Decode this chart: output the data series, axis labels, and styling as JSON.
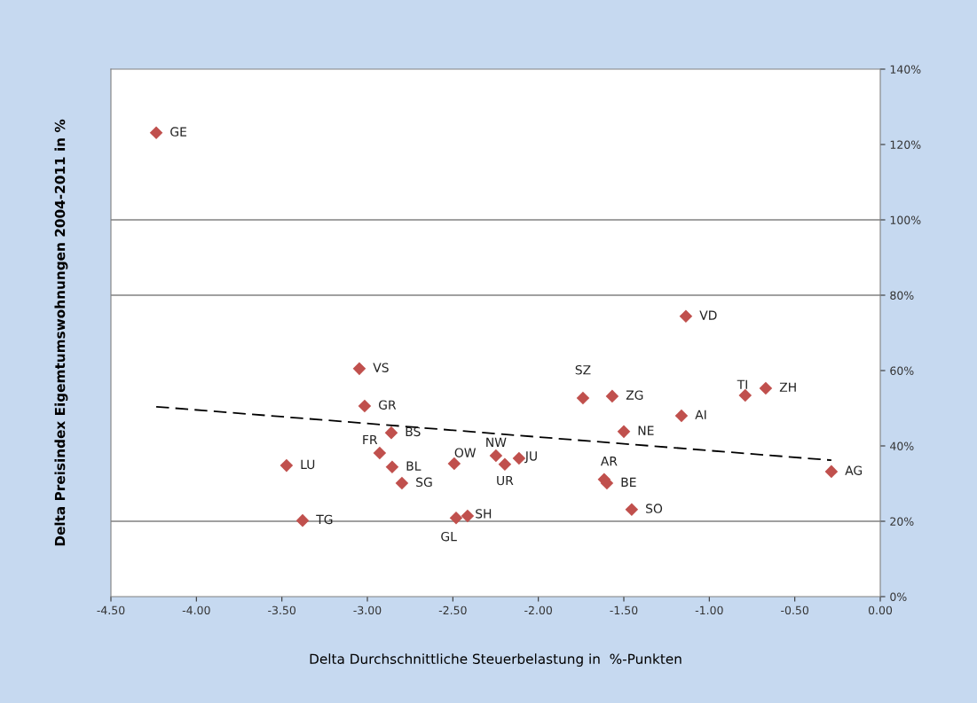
{
  "chart_data": {
    "type": "scatter",
    "xlabel": "Delta Durchschnittliche Steuerbelastung in  %-Punkten",
    "ylabel": "Delta Preisindex Eigemtumswohnungen 2004-2011 in %",
    "xlim": [
      -4.5,
      0.0
    ],
    "xticks": [
      {
        "value": -4.5,
        "label": "-4.50"
      },
      {
        "value": -4.0,
        "label": "-4.00"
      },
      {
        "value": -3.5,
        "label": "-3.50"
      },
      {
        "value": -3.0,
        "label": "-3.00"
      },
      {
        "value": -2.5,
        "label": "-2.50"
      },
      {
        "value": -2.0,
        "label": "-2.00"
      },
      {
        "value": -1.5,
        "label": "-1.50"
      },
      {
        "value": -1.0,
        "label": "-1.00"
      },
      {
        "value": -0.5,
        "label": "-0.50"
      },
      {
        "value": 0.0,
        "label": "0.00"
      }
    ],
    "ylim": [
      0,
      140
    ],
    "yticks": [
      {
        "value": 0,
        "label": "0%"
      },
      {
        "value": 20,
        "label": "20%"
      },
      {
        "value": 40,
        "label": "40%"
      },
      {
        "value": 60,
        "label": "60%"
      },
      {
        "value": 80,
        "label": "80%"
      },
      {
        "value": 100,
        "label": "100%"
      },
      {
        "value": 120,
        "label": "120%"
      },
      {
        "value": 140,
        "label": "140%"
      }
    ],
    "ref_lines": [
      {
        "axis": "y",
        "value": 20,
        "color": "#808080"
      },
      {
        "axis": "y",
        "value": 80,
        "color": "#808080"
      },
      {
        "axis": "y",
        "value": 100,
        "color": "#808080"
      }
    ],
    "series": [
      {
        "color": "#c0504d",
        "marker": "diamond",
        "x": [
          -4.235,
          -1.137,
          -3.047,
          -1.739,
          -1.568,
          -0.79,
          -0.67,
          -1.163,
          -3.016,
          -1.5,
          -2.86,
          -2.928,
          -3.473,
          -2.855,
          -2.798,
          -2.492,
          -2.248,
          -2.196,
          -2.113,
          -1.615,
          -1.599,
          -1.454,
          -0.286,
          -3.379,
          -2.481,
          -2.414
        ],
        "values": [
          123.1,
          74.4,
          60.5,
          52.7,
          53.2,
          53.4,
          55.3,
          48.0,
          50.6,
          43.8,
          43.5,
          38.1,
          34.8,
          34.4,
          30.1,
          35.3,
          37.4,
          35.1,
          36.7,
          31.1,
          30.1,
          23.1,
          33.2,
          20.2,
          20.9,
          21.4
        ],
        "value_labels": [
          "GE",
          "VD",
          "VS",
          "SZ",
          "ZG",
          "TI",
          "ZH",
          "AI",
          "GR",
          "NE",
          "BS",
          "FR",
          "LU",
          "BL",
          "SG",
          "OW",
          "NW",
          "UR",
          "JU",
          "AR",
          "BE",
          "SO",
          "AG",
          "TG",
          "GL",
          "SH"
        ]
      },
      {
        "type": "line",
        "color": "#000000",
        "line_style": "dashed",
        "marker": "none",
        "x": [
          -4.235,
          -0.286
        ],
        "values": [
          50.4,
          36.2
        ]
      }
    ]
  }
}
